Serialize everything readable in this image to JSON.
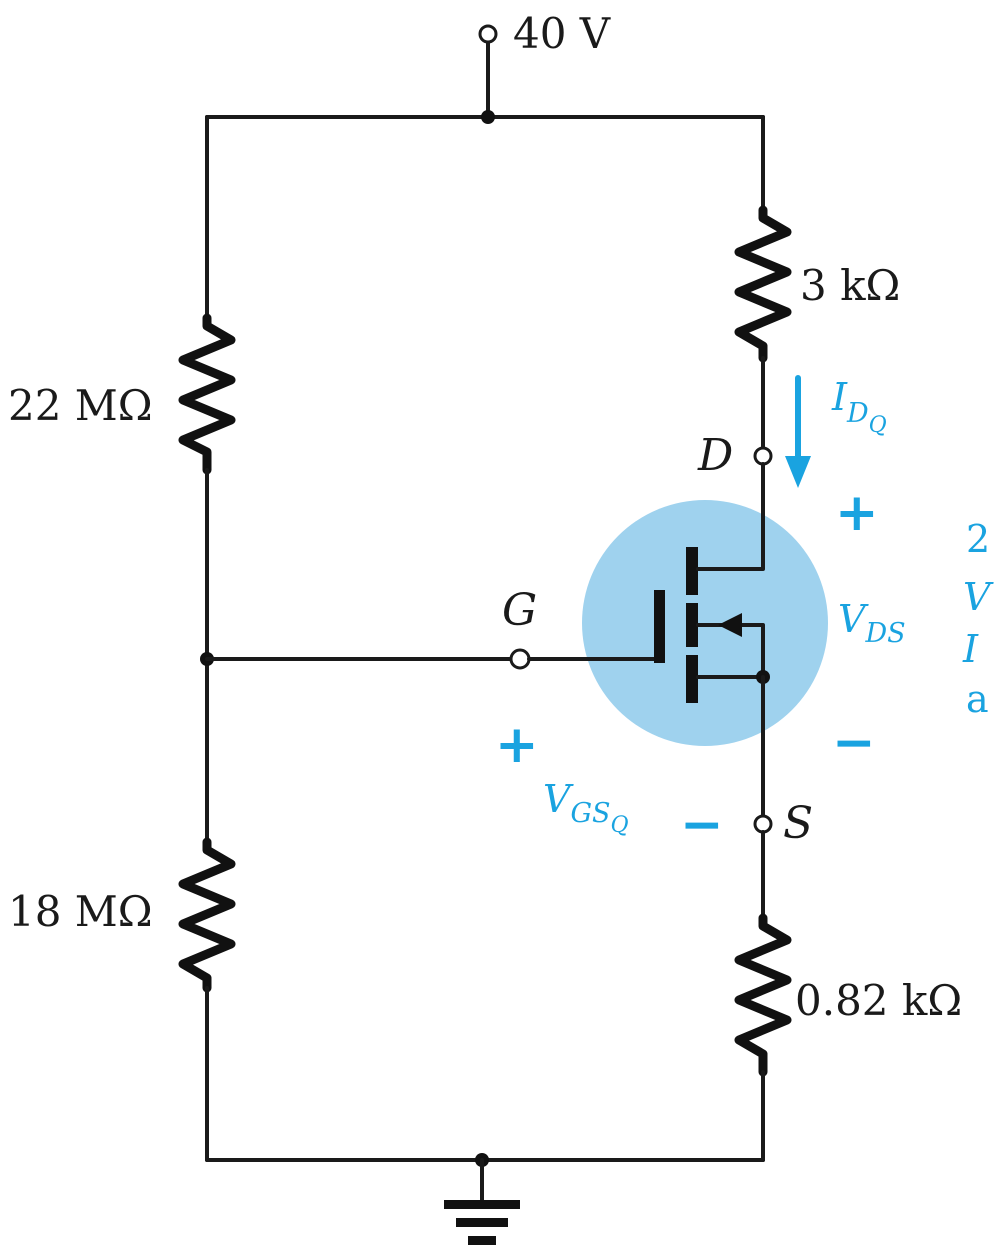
{
  "colors": {
    "wire": "#1a1a1a",
    "annotation_blue": "#1aa3e0",
    "transistor_highlight": "#9fd2ee"
  },
  "supply": {
    "label": "40 V"
  },
  "resistors": {
    "r1": {
      "label": "22 MΩ"
    },
    "r2": {
      "label": "18 MΩ"
    },
    "rd": {
      "label": "3 kΩ"
    },
    "rs": {
      "label": "0.82 kΩ"
    }
  },
  "terminals": {
    "drain": "D",
    "gate": "G",
    "source": "S"
  },
  "annotations": {
    "id_q": {
      "main": "I",
      "sub": "D",
      "subsub": "Q"
    },
    "vds": {
      "main": "V",
      "sub": "DS"
    },
    "vgs_q": {
      "main": "V",
      "sub": "GS",
      "subsub": "Q"
    },
    "plus": "+",
    "minus": "−"
  },
  "cut_text": {
    "line1": "2",
    "line2": "V",
    "line3": "I",
    "line4": "a"
  },
  "icons": {
    "ground": "ground-icon",
    "current_arrow": "arrow-down-icon",
    "mosfet": "n-channel-enhancement-mosfet-icon"
  }
}
